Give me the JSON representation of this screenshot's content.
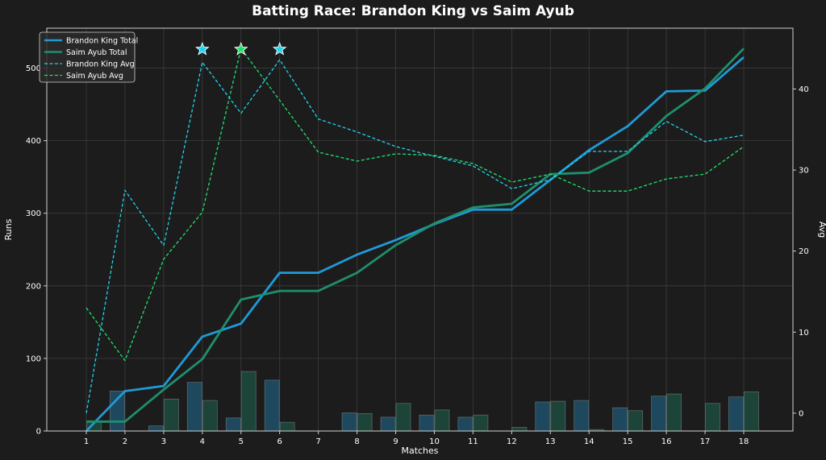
{
  "chart_data": {
    "type": "line",
    "title": "Batting Race: Brandon King vs Saim Ayub",
    "xlabel": "Matches",
    "ylabel": "Runs",
    "y2label": "Avg",
    "x": [
      1,
      2,
      3,
      4,
      5,
      6,
      7,
      8,
      9,
      10,
      11,
      12,
      13,
      14,
      15,
      16,
      17,
      18
    ],
    "ylim": [
      0,
      555
    ],
    "y2lim": [
      -2.2,
      47.5
    ],
    "yticks": [
      0,
      100,
      200,
      300,
      400,
      500
    ],
    "y2ticks": [
      0,
      10,
      20,
      30,
      40
    ],
    "grid": true,
    "legend_position": "top-left",
    "colors": {
      "background": "#1c1c1c",
      "grid": "#3d3d3d",
      "king": "#1f9ad6",
      "ayub": "#1e8f6e",
      "king_avg": "#22d3ee",
      "ayub_avg": "#22e06a"
    },
    "series": [
      {
        "name": "Brandon King Total",
        "axis": "left",
        "style": "solid",
        "color": "#1f9ad6",
        "values": [
          0,
          55,
          62,
          130,
          148,
          218,
          218,
          243,
          263,
          285,
          305,
          305,
          346,
          387,
          420,
          468,
          469,
          515
        ]
      },
      {
        "name": "Saim Ayub Total",
        "axis": "left",
        "style": "solid",
        "color": "#1e8f6e",
        "values": [
          13,
          13,
          57,
          99,
          181,
          193,
          193,
          218,
          256,
          286,
          308,
          313,
          354,
          356,
          383,
          434,
          472,
          527
        ]
      },
      {
        "name": "Brandon King Avg",
        "axis": "right",
        "style": "dashed",
        "color": "#22d3ee",
        "values": [
          0,
          27.5,
          20.7,
          43.3,
          37.0,
          43.6,
          36.3,
          34.7,
          32.9,
          31.7,
          30.5,
          27.7,
          28.8,
          32.3,
          32.3,
          36.0,
          33.5,
          34.3
        ]
      },
      {
        "name": "Saim Ayub Avg",
        "axis": "right",
        "style": "dashed",
        "color": "#22e06a",
        "values": [
          13.0,
          6.5,
          19.0,
          24.8,
          45.0,
          38.6,
          32.2,
          31.1,
          32.0,
          31.8,
          30.8,
          28.5,
          29.5,
          27.4,
          27.4,
          28.9,
          29.5,
          32.9
        ]
      }
    ],
    "bars": [
      {
        "name": "Brandon King Runs",
        "color": "#1f9ad6",
        "values": [
          0,
          55,
          7,
          67,
          18,
          70,
          0,
          25,
          19,
          22,
          19,
          0,
          40,
          42,
          32,
          48,
          0,
          47
        ]
      },
      {
        "name": "Saim Ayub Runs",
        "color": "#1e8f6e",
        "values": [
          13,
          0,
          44,
          42,
          82,
          12,
          0,
          24,
          38,
          29,
          22,
          5,
          41,
          2,
          28,
          51,
          38,
          54
        ]
      }
    ],
    "markers": [
      {
        "x": 4,
        "y": 526,
        "color": "#22d3ee",
        "symbol": "star"
      },
      {
        "x": 5,
        "y": 526,
        "color": "#22e06a",
        "symbol": "star"
      },
      {
        "x": 6,
        "y": 526,
        "color": "#22d3ee",
        "symbol": "star"
      }
    ]
  }
}
